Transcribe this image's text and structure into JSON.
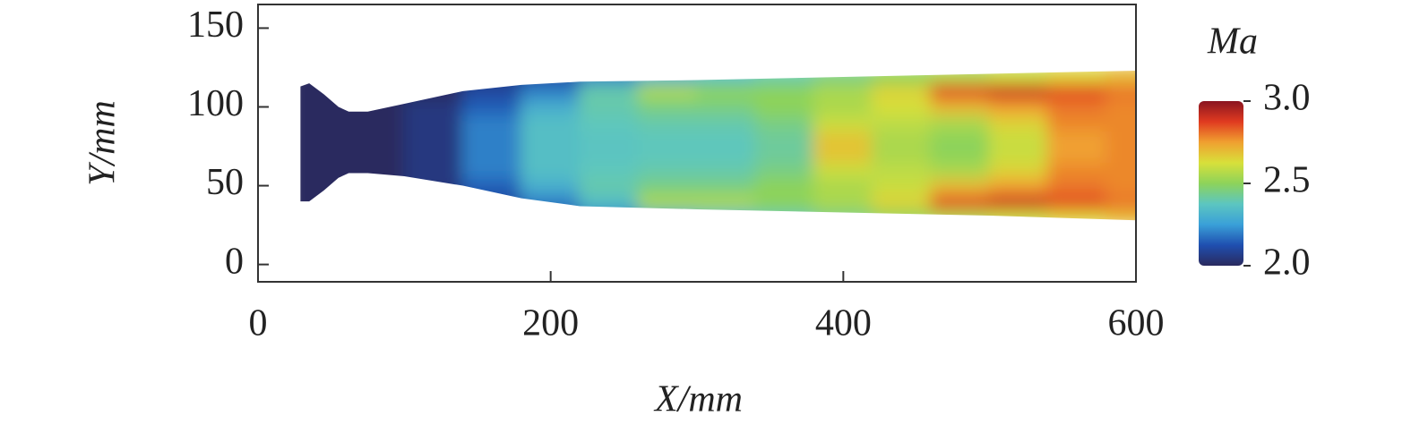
{
  "chart_data": {
    "type": "contour",
    "xlabel": "X/mm",
    "ylabel": "Y/mm",
    "zlabel": "Ma",
    "xlim": [
      0,
      600
    ],
    "xticks": [
      0,
      200,
      400,
      600
    ],
    "ylim": [
      -11,
      165
    ],
    "yticks": [
      0,
      50,
      100,
      150
    ],
    "x": [
      40,
      80,
      120,
      160,
      200,
      240,
      280,
      320,
      360,
      400,
      440,
      480,
      520,
      560,
      600
    ],
    "y": [
      30,
      40,
      50,
      60,
      70,
      80,
      90,
      100,
      110,
      120
    ],
    "z": [
      [
        2.0,
        2.0,
        2.0,
        2.0,
        2.0,
        2.0,
        2.0,
        2.0,
        2.0,
        2.0
      ],
      [
        2.0,
        2.0,
        2.0,
        2.0,
        2.0,
        2.0,
        2.0,
        2.0,
        2.0,
        2.0
      ],
      [
        2.0,
        2.0,
        2.05,
        2.05,
        2.05,
        2.05,
        2.05,
        2.05,
        2.0,
        2.0
      ],
      [
        2.05,
        2.1,
        2.15,
        2.2,
        2.2,
        2.2,
        2.2,
        2.15,
        2.1,
        2.05
      ],
      [
        2.1,
        2.2,
        2.3,
        2.35,
        2.35,
        2.35,
        2.35,
        2.3,
        2.2,
        2.1
      ],
      [
        2.2,
        2.35,
        2.4,
        2.38,
        2.37,
        2.37,
        2.38,
        2.4,
        2.4,
        2.2
      ],
      [
        2.3,
        2.55,
        2.45,
        2.4,
        2.38,
        2.38,
        2.4,
        2.45,
        2.55,
        2.3
      ],
      [
        2.35,
        2.55,
        2.45,
        2.4,
        2.38,
        2.38,
        2.4,
        2.45,
        2.5,
        2.35
      ],
      [
        2.4,
        2.5,
        2.5,
        2.45,
        2.42,
        2.42,
        2.45,
        2.5,
        2.5,
        2.4
      ],
      [
        2.45,
        2.55,
        2.55,
        2.6,
        2.68,
        2.68,
        2.6,
        2.55,
        2.55,
        2.45
      ],
      [
        2.5,
        2.65,
        2.6,
        2.58,
        2.55,
        2.55,
        2.58,
        2.62,
        2.65,
        2.5
      ],
      [
        2.55,
        2.85,
        2.7,
        2.55,
        2.5,
        2.5,
        2.55,
        2.7,
        2.85,
        2.55
      ],
      [
        2.6,
        2.9,
        2.75,
        2.65,
        2.6,
        2.6,
        2.65,
        2.75,
        2.9,
        2.6
      ],
      [
        2.65,
        2.85,
        2.8,
        2.78,
        2.75,
        2.75,
        2.78,
        2.8,
        2.85,
        2.65
      ],
      [
        2.7,
        2.8,
        2.78,
        2.78,
        2.78,
        2.78,
        2.78,
        2.78,
        2.8,
        2.7
      ]
    ],
    "zlim": [
      2.0,
      3.0
    ],
    "zticks": [
      {
        "value": 2.0,
        "label": "2.0"
      },
      2.5,
      {
        "value": 3.0,
        "label": "3.0"
      }
    ],
    "colors": [
      "#2a2a5e",
      "#1f4fb0",
      "#3aa0d8",
      "#5cc6c0",
      "#8dd35a",
      "#d8e03a",
      "#f0a030",
      "#e03a20",
      "#8a1420"
    ]
  }
}
